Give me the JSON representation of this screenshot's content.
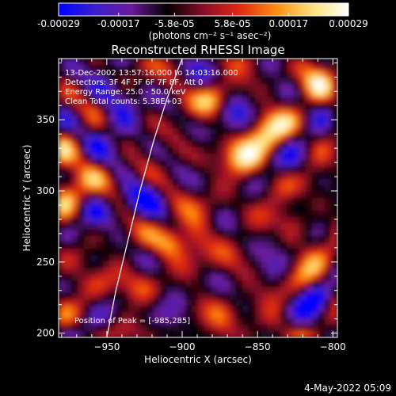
{
  "colorbar": {
    "tick_labels": [
      "-0.00029",
      "-0.00017",
      "-5.8e-05",
      "5.8e-05",
      "0.00017",
      "0.00029"
    ],
    "tick_values": [
      -0.00029,
      -0.00017,
      -5.8e-05,
      5.8e-05,
      0.00017,
      0.00029
    ],
    "range": [
      -0.00029,
      0.00029
    ],
    "units_label": "(photons cm⁻² s⁻¹ asec⁻²)",
    "colormap": [
      "#0000ff",
      "#3a1fd0",
      "#6a1a9a",
      "#000000",
      "#8a0d2a",
      "#e02a10",
      "#ff8c10",
      "#ffe07a",
      "#ffffff"
    ]
  },
  "chart_data": {
    "type": "heatmap",
    "title": "Reconstructed RHESSI Image",
    "xlabel": "Heliocentric X (arcsec)",
    "ylabel": "Heliocentric Y (arcsec)",
    "xlim": [
      -982,
      -797
    ],
    "ylim": [
      197,
      393
    ],
    "x_ticks": [
      -950,
      -900,
      -850,
      -800
    ],
    "y_ticks": [
      200,
      250,
      300,
      350
    ],
    "x_tick_labels": [
      "−950",
      "−900",
      "−850",
      "−800"
    ],
    "y_tick_labels": [
      "200",
      "250",
      "300",
      "350"
    ],
    "annotations": [
      "13-Dec-2002 13:57:16.000 to 14:03:16.000",
      "Detectors: 3F 4F 5F 6F 7F 8F, Att 0",
      "Energy Range: 25.0 - 50.0 keV",
      "Clean     Total counts: 5.38E+03"
    ],
    "peak_label": "Position of Peak = [-985,285]",
    "peak": [
      -985,
      285
    ],
    "limb_curve": [
      [
        -950,
        197
      ],
      [
        -944,
        230
      ],
      [
        -936,
        265
      ],
      [
        -928,
        300
      ],
      [
        -919,
        335
      ],
      [
        -910,
        365
      ],
      [
        -900,
        393
      ]
    ],
    "limb_color": "#ffffff"
  },
  "footer": {
    "timestamp": "4-May-2022 05:09"
  }
}
